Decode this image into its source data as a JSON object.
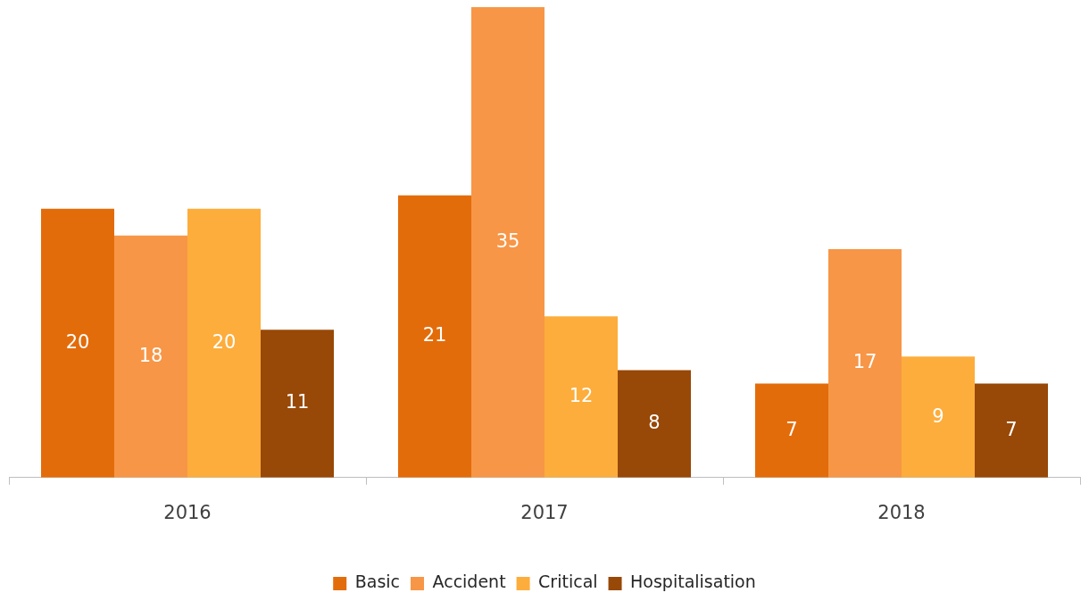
{
  "chart_data": {
    "type": "bar",
    "categories": [
      "2016",
      "2017",
      "2018"
    ],
    "series": [
      {
        "name": "Basic",
        "color": "#e36c0a",
        "values": [
          20,
          21,
          7
        ]
      },
      {
        "name": "Accident",
        "color": "#f79646",
        "values": [
          18,
          35,
          17
        ]
      },
      {
        "name": "Critical",
        "color": "#fdad3b",
        "values": [
          20,
          12,
          9
        ]
      },
      {
        "name": "Hospitalisation",
        "color": "#984807",
        "values": [
          11,
          8,
          7
        ]
      }
    ],
    "ylim": [
      0,
      35
    ],
    "data_labels": true,
    "legend": "bottom",
    "grid": false
  }
}
